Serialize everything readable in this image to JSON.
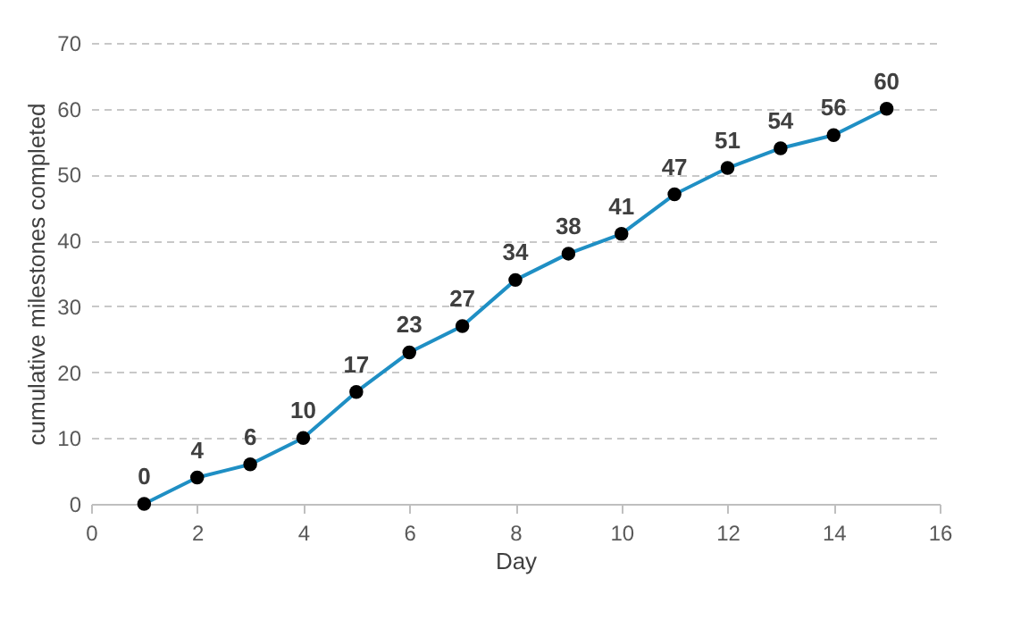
{
  "chart_data": {
    "type": "line",
    "xlabel": "Day",
    "ylabel": "cumulative milestones completed",
    "x": [
      1,
      2,
      3,
      4,
      5,
      6,
      7,
      8,
      9,
      10,
      11,
      12,
      13,
      14,
      15
    ],
    "series": [
      {
        "color": "#1f8fc4",
        "values": [
          0,
          4,
          6,
          10,
          17,
          23,
          27,
          34,
          38,
          41,
          47,
          51,
          54,
          56,
          60
        ]
      }
    ],
    "xlim": [
      0,
      16
    ],
    "xticks": [
      0,
      2,
      4,
      6,
      8,
      10,
      12,
      14,
      16
    ],
    "ylim": [
      0,
      70
    ],
    "yticks": [
      0,
      10,
      20,
      30,
      40,
      50,
      60,
      70
    ],
    "grid": "y",
    "marker": "circle",
    "data_labels": true
  }
}
